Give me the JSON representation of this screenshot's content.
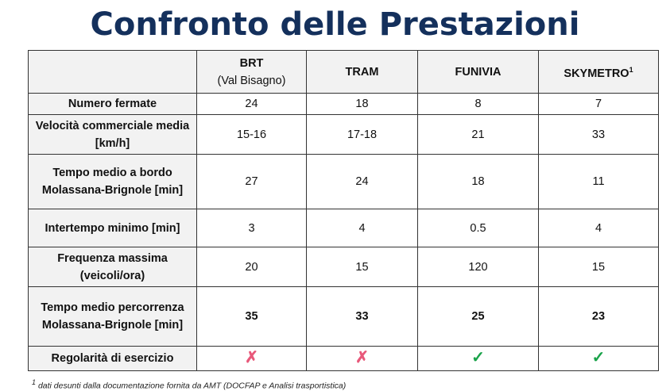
{
  "title": "Confronto delle Prestazioni",
  "columns": [
    {
      "name": "BRT",
      "sub": "(Val Bisagno)"
    },
    {
      "name": "TRAM",
      "sub": ""
    },
    {
      "name": "FUNIVIA",
      "sub": ""
    },
    {
      "name": "SKYMETRO",
      "sup": "1"
    }
  ],
  "rows": [
    {
      "label": "Numero fermate",
      "values": [
        "24",
        "18",
        "8",
        "7"
      ]
    },
    {
      "label": "Velocità commerciale media [km/h]",
      "values": [
        "15-16",
        "17-18",
        "21",
        "33"
      ]
    },
    {
      "label": "Tempo medio a bordo Molassana-Brignole [min]",
      "values": [
        "27",
        "24",
        "18",
        "11"
      ]
    },
    {
      "label": "Intertempo minimo [min]",
      "values": [
        "3",
        "4",
        "0.5",
        "4"
      ]
    },
    {
      "label": "Frequenza massima (veicoli/ora)",
      "values": [
        "20",
        "15",
        "120",
        "15"
      ]
    },
    {
      "label": "Tempo medio percorrenza Molassana-Brignole [min]",
      "values": [
        "35",
        "33",
        "25",
        "23"
      ]
    },
    {
      "label": "Regolarità di esercizio",
      "values": [
        "✗",
        "✗",
        "✓",
        "✓"
      ],
      "icons": [
        "cross-icon",
        "cross-icon",
        "check-icon",
        "check-icon"
      ]
    }
  ],
  "colors": {
    "title": "#14305c",
    "cross": "#e8587a",
    "check": "#1aa34a"
  },
  "footnote": {
    "mark": "1",
    "text": "dati desunti dalla documentazione fornita da AMT (DOCFAP e Analisi trasportistica)"
  }
}
